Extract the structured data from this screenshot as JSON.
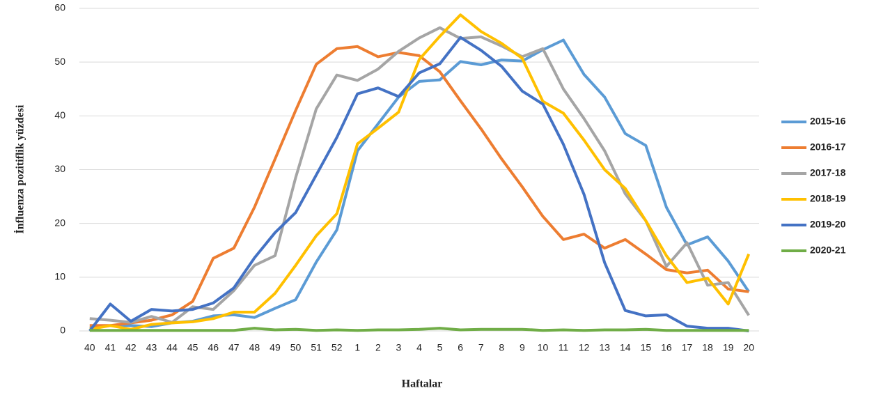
{
  "chart_data": {
    "type": "line",
    "x_label": "Haftalar",
    "y_label": "İnfluenza pozitiflik yüzdesi",
    "categories": [
      "40",
      "41",
      "42",
      "43",
      "44",
      "45",
      "46",
      "47",
      "48",
      "49",
      "50",
      "51",
      "52",
      "1",
      "2",
      "3",
      "4",
      "5",
      "6",
      "7",
      "8",
      "9",
      "10",
      "11",
      "12",
      "13",
      "14",
      "15",
      "16",
      "17",
      "18",
      "19",
      "20"
    ],
    "ylim": [
      0,
      60
    ],
    "yticks": [
      0,
      10,
      20,
      30,
      40,
      50,
      60
    ],
    "grid": true,
    "legend": "right",
    "series": [
      {
        "name": "2015-16",
        "color": "#5b9bd5",
        "values": [
          0.5,
          1,
          1,
          0.8,
          1.5,
          1.8,
          2.8,
          3,
          2.5,
          4.2,
          5.8,
          12.8,
          18.8,
          33.5,
          38.5,
          43.5,
          46.4,
          46.7,
          50.1,
          49.5,
          50.4,
          50.2,
          52.3,
          54.1,
          47.7,
          43.5,
          36.7,
          34.5,
          23,
          16,
          17.5,
          13,
          7.3
        ]
      },
      {
        "name": "2016-17",
        "color": "#ed7d31",
        "values": [
          1,
          1,
          1.5,
          2,
          3,
          5.5,
          13.5,
          15.4,
          23,
          32,
          41,
          49.6,
          52.5,
          52.9,
          51,
          51.8,
          51.2,
          48.2,
          42.8,
          37.6,
          32,
          26.8,
          21.3,
          17,
          18,
          15.4,
          17,
          14.3,
          11.4,
          10.8,
          11.3,
          7.8,
          7.3
        ]
      },
      {
        "name": "2017-18",
        "color": "#a5a5a5",
        "values": [
          2.3,
          2,
          1.6,
          2.7,
          1.6,
          4.5,
          4,
          7.5,
          12.2,
          14,
          28.5,
          41.3,
          47.6,
          46.6,
          48.7,
          52,
          54.5,
          56.4,
          54.4,
          54.7,
          53,
          51,
          52.5,
          45,
          39.5,
          33.5,
          25.5,
          20.5,
          12,
          16.4,
          8.5,
          9,
          2.9
        ]
      },
      {
        "name": "2018-19",
        "color": "#ffc000",
        "values": [
          0.3,
          1,
          0.3,
          1.2,
          1.5,
          1.7,
          2.3,
          3.5,
          3.5,
          7,
          12.2,
          17.7,
          21.8,
          34.8,
          37.7,
          40.7,
          50.5,
          54.8,
          58.8,
          55.7,
          53.5,
          50.7,
          42.7,
          40.5,
          35.5,
          30,
          26.5,
          20.5,
          14,
          9,
          9.8,
          5,
          14.3
        ]
      },
      {
        "name": "2019-20",
        "color": "#4472c4",
        "values": [
          0,
          5,
          1.8,
          4,
          3.7,
          4,
          5.2,
          8,
          13.6,
          18.3,
          22,
          29,
          36,
          44.1,
          45.2,
          43.6,
          48,
          49.7,
          54.6,
          52.2,
          49.2,
          44.6,
          42.2,
          34.7,
          25.4,
          12.7,
          3.8,
          2.8,
          3,
          0.9,
          0.5,
          0.5,
          0
        ]
      },
      {
        "name": "2020-21",
        "color": "#70ad47",
        "values": [
          0.1,
          0.1,
          0.1,
          0.1,
          0.1,
          0.1,
          0.1,
          0.1,
          0.5,
          0.2,
          0.3,
          0.1,
          0.2,
          0.1,
          0.2,
          0.2,
          0.3,
          0.5,
          0.2,
          0.3,
          0.3,
          0.3,
          0.1,
          0.2,
          0.1,
          0.2,
          0.2,
          0.3,
          0.1,
          0.1,
          0.1,
          0.1,
          0.1
        ]
      }
    ]
  }
}
